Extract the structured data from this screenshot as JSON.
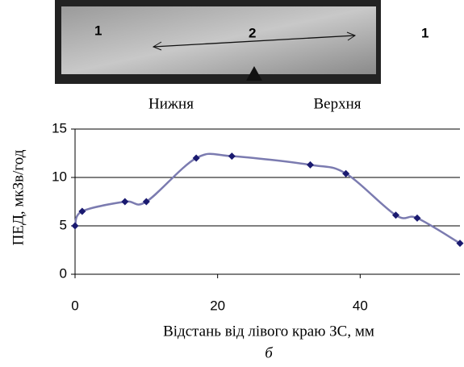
{
  "figure": {
    "photo_labels": [
      "1",
      "2",
      "1"
    ],
    "side_labels": [
      "Нижня",
      "Верхня"
    ],
    "caption": "б"
  },
  "chart_data": {
    "type": "line",
    "ylabel": "ПЕД, мкЗв/год",
    "xlabel": "Відстань від лівого краю ЗС, мм",
    "x": [
      0,
      1,
      7,
      10,
      17,
      22,
      33,
      38,
      45,
      48,
      54
    ],
    "series": [
      {
        "color": "#7b7bb0",
        "marker_color": "#1a1a70",
        "values": [
          5,
          6.5,
          7.5,
          7.5,
          12,
          12.2,
          11.3,
          10.4,
          6.1,
          5.8,
          3.2
        ]
      }
    ],
    "xlim": [
      0,
      54
    ],
    "xticks": [
      0,
      20,
      40
    ],
    "ylim": [
      0,
      15
    ],
    "yticks": [
      0,
      5,
      10,
      15
    ],
    "grid": true
  }
}
